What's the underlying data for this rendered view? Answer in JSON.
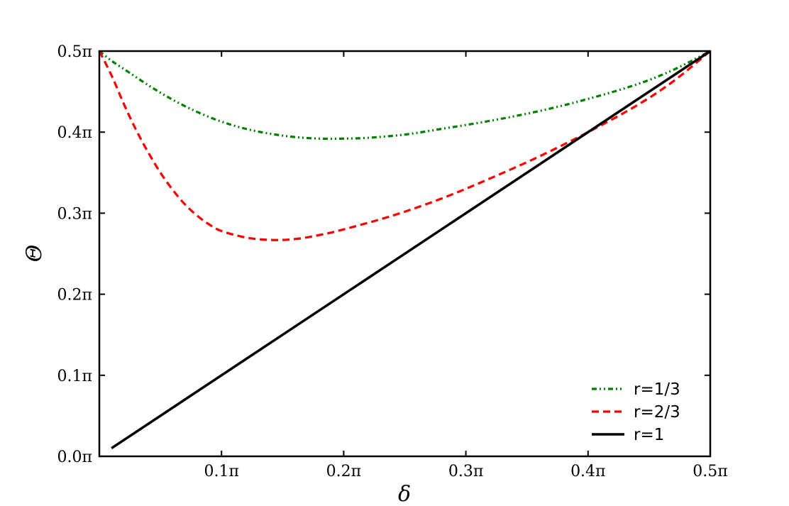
{
  "chart_data": {
    "type": "line",
    "xlabel": "δ",
    "ylabel": "Θ",
    "xlim": [
      0,
      0.5
    ],
    "ylim": [
      0,
      0.5
    ],
    "x_unit": "π",
    "y_unit": "π",
    "x_ticks": [
      {
        "value": 0.1,
        "label": "0.1π"
      },
      {
        "value": 0.2,
        "label": "0.2π"
      },
      {
        "value": 0.3,
        "label": "0.3π"
      },
      {
        "value": 0.4,
        "label": "0.4π"
      },
      {
        "value": 0.5,
        "label": "0.5π"
      }
    ],
    "y_ticks": [
      {
        "value": 0.0,
        "label": "0.0π"
      },
      {
        "value": 0.1,
        "label": "0.1π"
      },
      {
        "value": 0.2,
        "label": "0.2π"
      },
      {
        "value": 0.3,
        "label": "0.3π"
      },
      {
        "value": 0.4,
        "label": "0.4π"
      },
      {
        "value": 0.5,
        "label": "0.5π"
      }
    ],
    "grid": false,
    "legend_position": "bottom-right",
    "series": [
      {
        "name": "r=1/3",
        "color": "#007f00",
        "dash": "dash-dot-dot",
        "x": [
          0.0,
          0.01,
          0.02,
          0.04,
          0.06,
          0.08,
          0.1,
          0.12,
          0.14,
          0.16,
          0.18,
          0.2,
          0.22,
          0.25,
          0.28,
          0.32,
          0.36,
          0.4,
          0.44,
          0.47,
          0.5
        ],
        "y": [
          0.5,
          0.488,
          0.478,
          0.458,
          0.44,
          0.425,
          0.413,
          0.404,
          0.398,
          0.394,
          0.392,
          0.392,
          0.393,
          0.397,
          0.404,
          0.414,
          0.426,
          0.441,
          0.459,
          0.477,
          0.5
        ]
      },
      {
        "name": "r=2/3",
        "color": "#ff0000",
        "dash": "dashed",
        "x": [
          0.0,
          0.01,
          0.02,
          0.03,
          0.04,
          0.05,
          0.06,
          0.07,
          0.08,
          0.09,
          0.1,
          0.12,
          0.14,
          0.16,
          0.18,
          0.2,
          0.24,
          0.28,
          0.32,
          0.36,
          0.4,
          0.44,
          0.47,
          0.5
        ],
        "y": [
          0.5,
          0.47,
          0.435,
          0.403,
          0.375,
          0.35,
          0.329,
          0.311,
          0.297,
          0.286,
          0.278,
          0.27,
          0.267,
          0.268,
          0.273,
          0.28,
          0.297,
          0.318,
          0.343,
          0.37,
          0.4,
          0.433,
          0.463,
          0.5
        ]
      },
      {
        "name": "r=1",
        "color": "#000000",
        "dash": "solid",
        "x": [
          0.01,
          0.5
        ],
        "y": [
          0.01,
          0.5
        ]
      }
    ]
  }
}
